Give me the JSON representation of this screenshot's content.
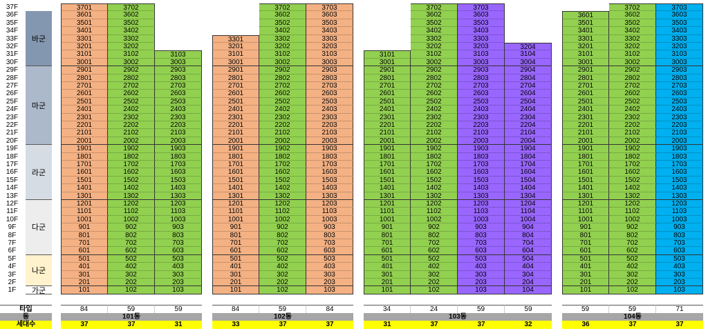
{
  "floors": [
    "37F",
    "36F",
    "35F",
    "34F",
    "33F",
    "32F",
    "31F",
    "30F",
    "29F",
    "28F",
    "27F",
    "26F",
    "25F",
    "24F",
    "23F",
    "22F",
    "21F",
    "20F",
    "19F",
    "18F",
    "17F",
    "16F",
    "15F",
    "14F",
    "13F",
    "12F",
    "11F",
    "10F",
    "9F",
    "8F",
    "7F",
    "6F",
    "5F",
    "4F",
    "3F",
    "2F",
    "1F"
  ],
  "groups": [
    {
      "label": "바군",
      "top_floor": 36,
      "bottom_floor": 30,
      "color": "#8497b0"
    },
    {
      "label": "마군",
      "top_floor": 29,
      "bottom_floor": 20,
      "color": "#acb9ca"
    },
    {
      "label": "라군",
      "top_floor": 19,
      "bottom_floor": 13,
      "color": "#d6dce4"
    },
    {
      "label": "다군",
      "top_floor": 12,
      "bottom_floor": 6,
      "color": "#ededed"
    },
    {
      "label": "나군",
      "top_floor": 5,
      "bottom_floor": 2,
      "color": "#fff2cc"
    },
    {
      "label": "가군",
      "top_floor": 1,
      "bottom_floor": 1,
      "color": "#ffffff"
    }
  ],
  "labels": {
    "type": "타입",
    "dong": "동",
    "households": "세대수"
  },
  "colors": {
    "orange": "#f4b183",
    "green": "#92d050",
    "purple": "#9966ff",
    "blue": "#00b0f0",
    "gray": "#a6a6a6",
    "yellow": "#ffff00"
  },
  "buildings": [
    {
      "name": "101동",
      "columns": [
        {
          "suffix": "01",
          "max_floor": 37,
          "type": "84",
          "households": "37",
          "color": "orange"
        },
        {
          "suffix": "02",
          "max_floor": 37,
          "type": "59",
          "households": "37",
          "color": "green"
        },
        {
          "suffix": "03",
          "max_floor": 31,
          "type": "59",
          "households": "31",
          "color": "green"
        }
      ]
    },
    {
      "name": "102동",
      "columns": [
        {
          "suffix": "01",
          "max_floor": 33,
          "type": "84",
          "households": "33",
          "color": "orange"
        },
        {
          "suffix": "02",
          "max_floor": 37,
          "type": "59",
          "households": "37",
          "color": "green"
        },
        {
          "suffix": "03",
          "max_floor": 37,
          "type": "84",
          "households": "37",
          "color": "orange"
        }
      ]
    },
    {
      "name": "103동",
      "columns": [
        {
          "suffix": "01",
          "max_floor": 31,
          "type": "34",
          "households": "31",
          "color": "green"
        },
        {
          "suffix": "02",
          "max_floor": 37,
          "type": "24",
          "households": "37",
          "color": "green"
        },
        {
          "suffix": "03",
          "max_floor": 37,
          "type": "59",
          "households": "37",
          "color": "purple"
        },
        {
          "suffix": "04",
          "max_floor": 32,
          "type": "59",
          "households": "32",
          "color": "purple"
        }
      ]
    },
    {
      "name": "104동",
      "columns": [
        {
          "suffix": "01",
          "max_floor": 36,
          "type": "59",
          "households": "36",
          "color": "green"
        },
        {
          "suffix": "02",
          "max_floor": 37,
          "type": "59",
          "households": "37",
          "color": "green"
        },
        {
          "suffix": "03",
          "max_floor": 37,
          "type": "71",
          "households": "37",
          "color": "blue"
        }
      ]
    }
  ]
}
